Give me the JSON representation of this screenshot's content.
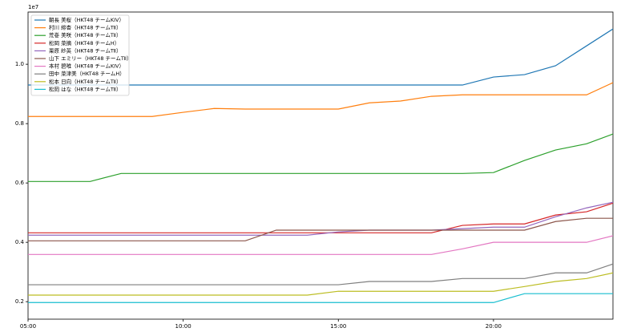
{
  "chart_data": {
    "type": "line",
    "y_offset_label": "1e7",
    "x": [
      5,
      6,
      7,
      8,
      9,
      10,
      11,
      12,
      13,
      14,
      15,
      16,
      17,
      18,
      19,
      20,
      21,
      22,
      23,
      23.85
    ],
    "xlim": [
      5,
      23.85
    ],
    "xticks": [
      {
        "value": 5,
        "label": "05:00"
      },
      {
        "value": 10,
        "label": "10:00"
      },
      {
        "value": 15,
        "label": "15:00"
      },
      {
        "value": 20,
        "label": "20:00"
      }
    ],
    "ylim": [
      0.141,
      1.176
    ],
    "yticks": [
      0.2,
      0.4,
      0.6,
      0.8,
      {
        "value": 1.0,
        "label": "1.0"
      }
    ],
    "legend": "upper left",
    "series": [
      {
        "name": "朝長 美桜（HKT48 チームKIV）",
        "color": "#1f77b4",
        "values": [
          0.93,
          0.93,
          0.93,
          0.93,
          0.93,
          0.93,
          0.93,
          0.93,
          0.93,
          0.93,
          0.93,
          0.93,
          0.93,
          0.93,
          0.93,
          0.957,
          0.965,
          0.995,
          1.062,
          1.119
        ]
      },
      {
        "name": "村川 緋杏（HKT48 チームTⅡ）",
        "color": "#ff7f0e",
        "values": [
          0.824,
          0.824,
          0.824,
          0.824,
          0.824,
          0.838,
          0.851,
          0.849,
          0.849,
          0.849,
          0.849,
          0.87,
          0.876,
          0.892,
          0.897,
          0.897,
          0.897,
          0.897,
          0.897,
          0.938
        ]
      },
      {
        "name": "荒巻 美咲（HKT48 チームTⅡ）",
        "color": "#2ca02c",
        "values": [
          0.605,
          0.605,
          0.605,
          0.632,
          0.632,
          0.632,
          0.632,
          0.632,
          0.632,
          0.632,
          0.632,
          0.632,
          0.632,
          0.632,
          0.632,
          0.635,
          0.676,
          0.711,
          0.732,
          0.765
        ]
      },
      {
        "name": "松岡 菜摘（HKT48 チームH）",
        "color": "#d62728",
        "values": [
          0.432,
          0.432,
          0.432,
          0.432,
          0.432,
          0.432,
          0.432,
          0.432,
          0.432,
          0.432,
          0.432,
          0.432,
          0.432,
          0.432,
          0.457,
          0.462,
          0.462,
          0.492,
          0.503,
          0.532
        ]
      },
      {
        "name": "栗原 紗英（HKT48 チームTⅡ）",
        "color": "#9467bd",
        "values": [
          0.424,
          0.424,
          0.424,
          0.424,
          0.424,
          0.424,
          0.424,
          0.424,
          0.424,
          0.424,
          0.435,
          0.441,
          0.441,
          0.441,
          0.446,
          0.451,
          0.451,
          0.486,
          0.516,
          0.535
        ]
      },
      {
        "name": "山下 エミリー（HKT48 チームTⅡ）",
        "color": "#8c564b",
        "values": [
          0.405,
          0.405,
          0.405,
          0.405,
          0.405,
          0.405,
          0.405,
          0.405,
          0.441,
          0.441,
          0.441,
          0.441,
          0.441,
          0.441,
          0.441,
          0.441,
          0.441,
          0.47,
          0.481,
          0.481
        ]
      },
      {
        "name": "本村 碧唯（HKT48 チームKIV）",
        "color": "#e377c2",
        "values": [
          0.359,
          0.359,
          0.359,
          0.359,
          0.359,
          0.359,
          0.359,
          0.359,
          0.359,
          0.359,
          0.359,
          0.359,
          0.359,
          0.359,
          0.378,
          0.4,
          0.4,
          0.4,
          0.4,
          0.422
        ]
      },
      {
        "name": "田中 菜津美（HKT48 チームH）",
        "color": "#7f7f7f",
        "values": [
          0.257,
          0.257,
          0.257,
          0.257,
          0.257,
          0.257,
          0.257,
          0.257,
          0.257,
          0.257,
          0.257,
          0.268,
          0.268,
          0.268,
          0.278,
          0.278,
          0.278,
          0.297,
          0.297,
          0.327
        ]
      },
      {
        "name": "松本 日向（HKT48 チームTⅡ）",
        "color": "#bcbd22",
        "values": [
          0.222,
          0.222,
          0.222,
          0.222,
          0.222,
          0.222,
          0.222,
          0.222,
          0.222,
          0.222,
          0.235,
          0.235,
          0.235,
          0.235,
          0.235,
          0.235,
          0.251,
          0.268,
          0.278,
          0.297
        ]
      },
      {
        "name": "松岡 はな（HKT48 チームTⅡ）",
        "color": "#17becf",
        "values": [
          0.197,
          0.197,
          0.197,
          0.197,
          0.197,
          0.197,
          0.197,
          0.197,
          0.197,
          0.197,
          0.197,
          0.197,
          0.197,
          0.197,
          0.197,
          0.197,
          0.227,
          0.227,
          0.227,
          0.227
        ]
      }
    ]
  }
}
